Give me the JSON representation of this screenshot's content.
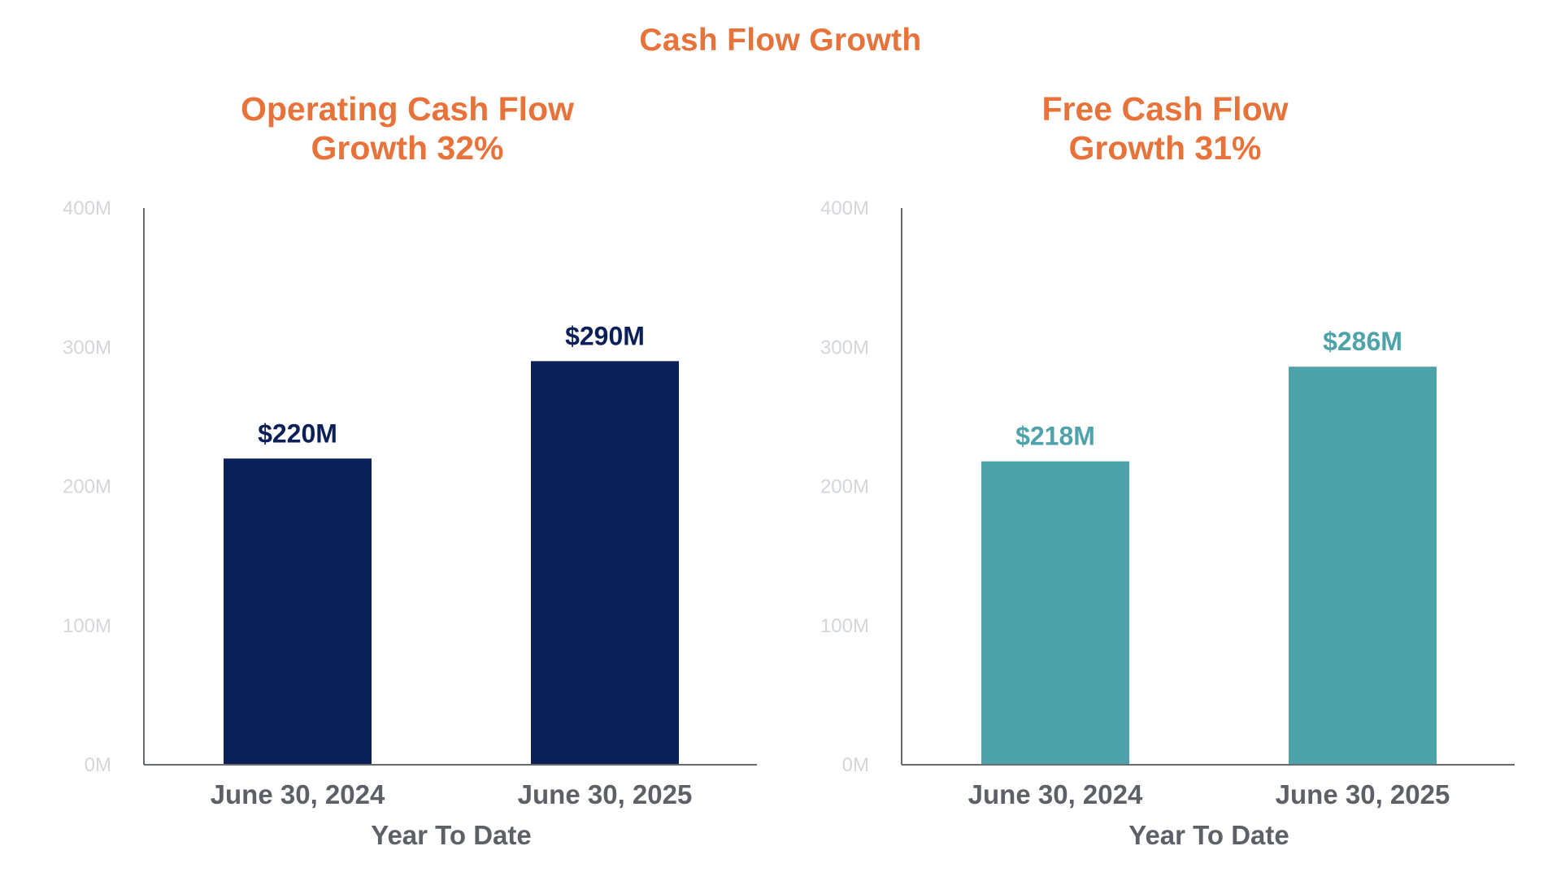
{
  "page_title": "Cash Flow Growth",
  "colors": {
    "title": "#e8733a",
    "operating_bar": "#0b1f59",
    "free_bar": "#4ea3ab",
    "axis": "#666b70",
    "tick_label": "#d3d6db",
    "category_label": "#5d6066"
  },
  "chart_data": [
    {
      "type": "bar",
      "title_line1": "Operating Cash Flow",
      "title_line2": "Growth 32%",
      "categories": [
        "June 30, 2024",
        "June 30, 2025"
      ],
      "values": [
        220,
        290
      ],
      "data_labels": [
        "$220M",
        "$290M"
      ],
      "xlabel": "Year To Date",
      "ylabel": "",
      "ylim": [
        0,
        400
      ],
      "yticks": [
        0,
        100,
        200,
        300,
        400
      ],
      "ytick_labels": [
        "0M",
        "100M",
        "200M",
        "300M",
        "400M"
      ],
      "bar_color": "#0b1f59",
      "grid": false
    },
    {
      "type": "bar",
      "title_line1": "Free Cash Flow",
      "title_line2": "Growth 31%",
      "categories": [
        "June 30, 2024",
        "June 30, 2025"
      ],
      "values": [
        218,
        286
      ],
      "data_labels": [
        "$218M",
        "$286M"
      ],
      "xlabel": "Year To Date",
      "ylabel": "",
      "ylim": [
        0,
        400
      ],
      "yticks": [
        0,
        100,
        200,
        300,
        400
      ],
      "ytick_labels": [
        "0M",
        "100M",
        "200M",
        "300M",
        "400M"
      ],
      "bar_color": "#4ea3ab",
      "grid": false
    }
  ]
}
